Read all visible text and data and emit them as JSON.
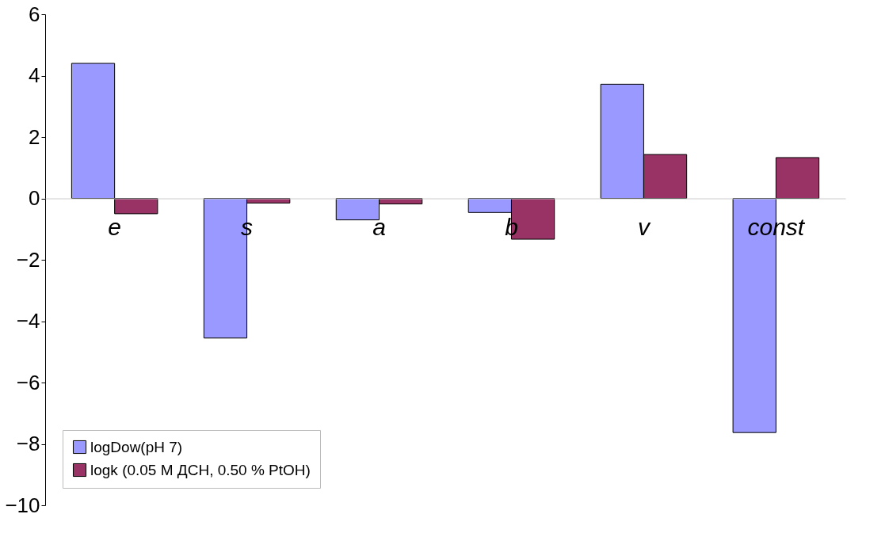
{
  "chart_data": {
    "type": "bar",
    "categories": [
      "e",
      "s",
      "a",
      "b",
      "v",
      "const"
    ],
    "series": [
      {
        "name": "logDow(pH 7)",
        "color": "#9999ff",
        "values": [
          4.4,
          -4.55,
          -0.7,
          -0.46,
          3.72,
          -7.63
        ]
      },
      {
        "name": "logk (0.05 M ДСН, 0.50 % PtOH)",
        "color": "#993366",
        "values": [
          -0.5,
          -0.15,
          -0.18,
          -1.33,
          1.43,
          1.33
        ]
      }
    ],
    "ylim": [
      -10,
      6
    ],
    "yticks": [
      -10,
      -8,
      -6,
      -4,
      -2,
      0,
      2,
      4,
      6
    ],
    "grid": false,
    "legend": "bottom left"
  }
}
